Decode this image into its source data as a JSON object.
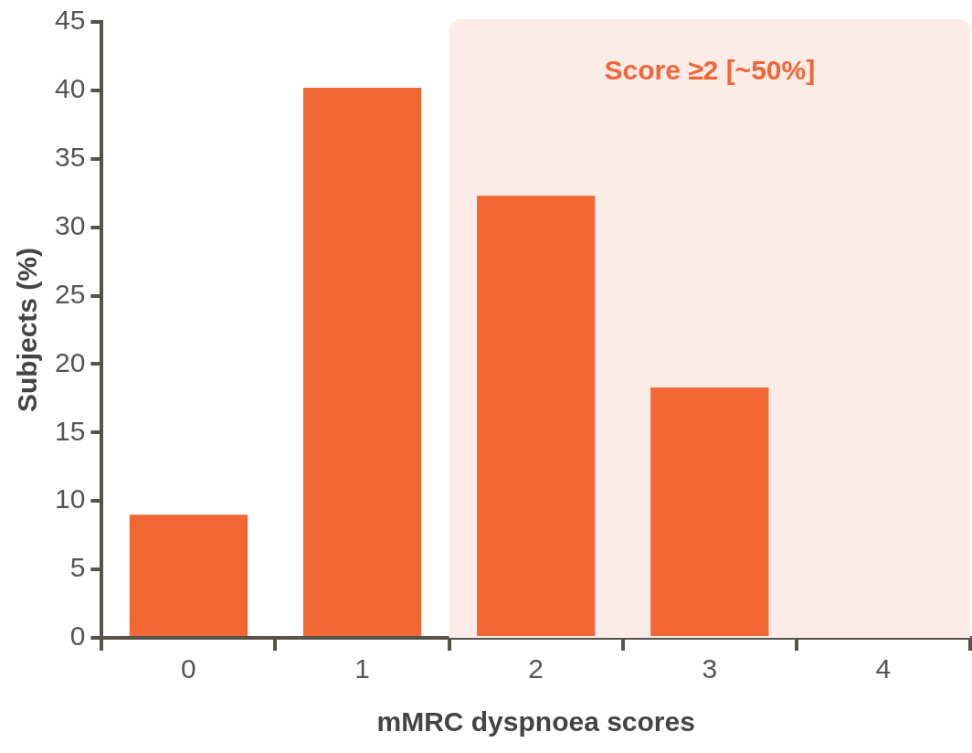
{
  "chart_data": {
    "type": "bar",
    "xlabel": "mMRC dyspnoea scores",
    "ylabel": "Subjects (%)",
    "categories": [
      "0",
      "1",
      "2",
      "3",
      "4"
    ],
    "values": [
      9,
      40.2,
      32.3,
      18.3,
      0
    ],
    "color": "#f26535",
    "ylim": [
      0,
      45
    ],
    "yticks": [
      0,
      5,
      10,
      15,
      20,
      25,
      30,
      35,
      40,
      45
    ],
    "grid": false,
    "legend": false,
    "bands": [
      {
        "axis": "x",
        "from": "2",
        "to": "4",
        "label": "Score ≥2 [~50%]",
        "color": "#fcece7"
      }
    ]
  }
}
